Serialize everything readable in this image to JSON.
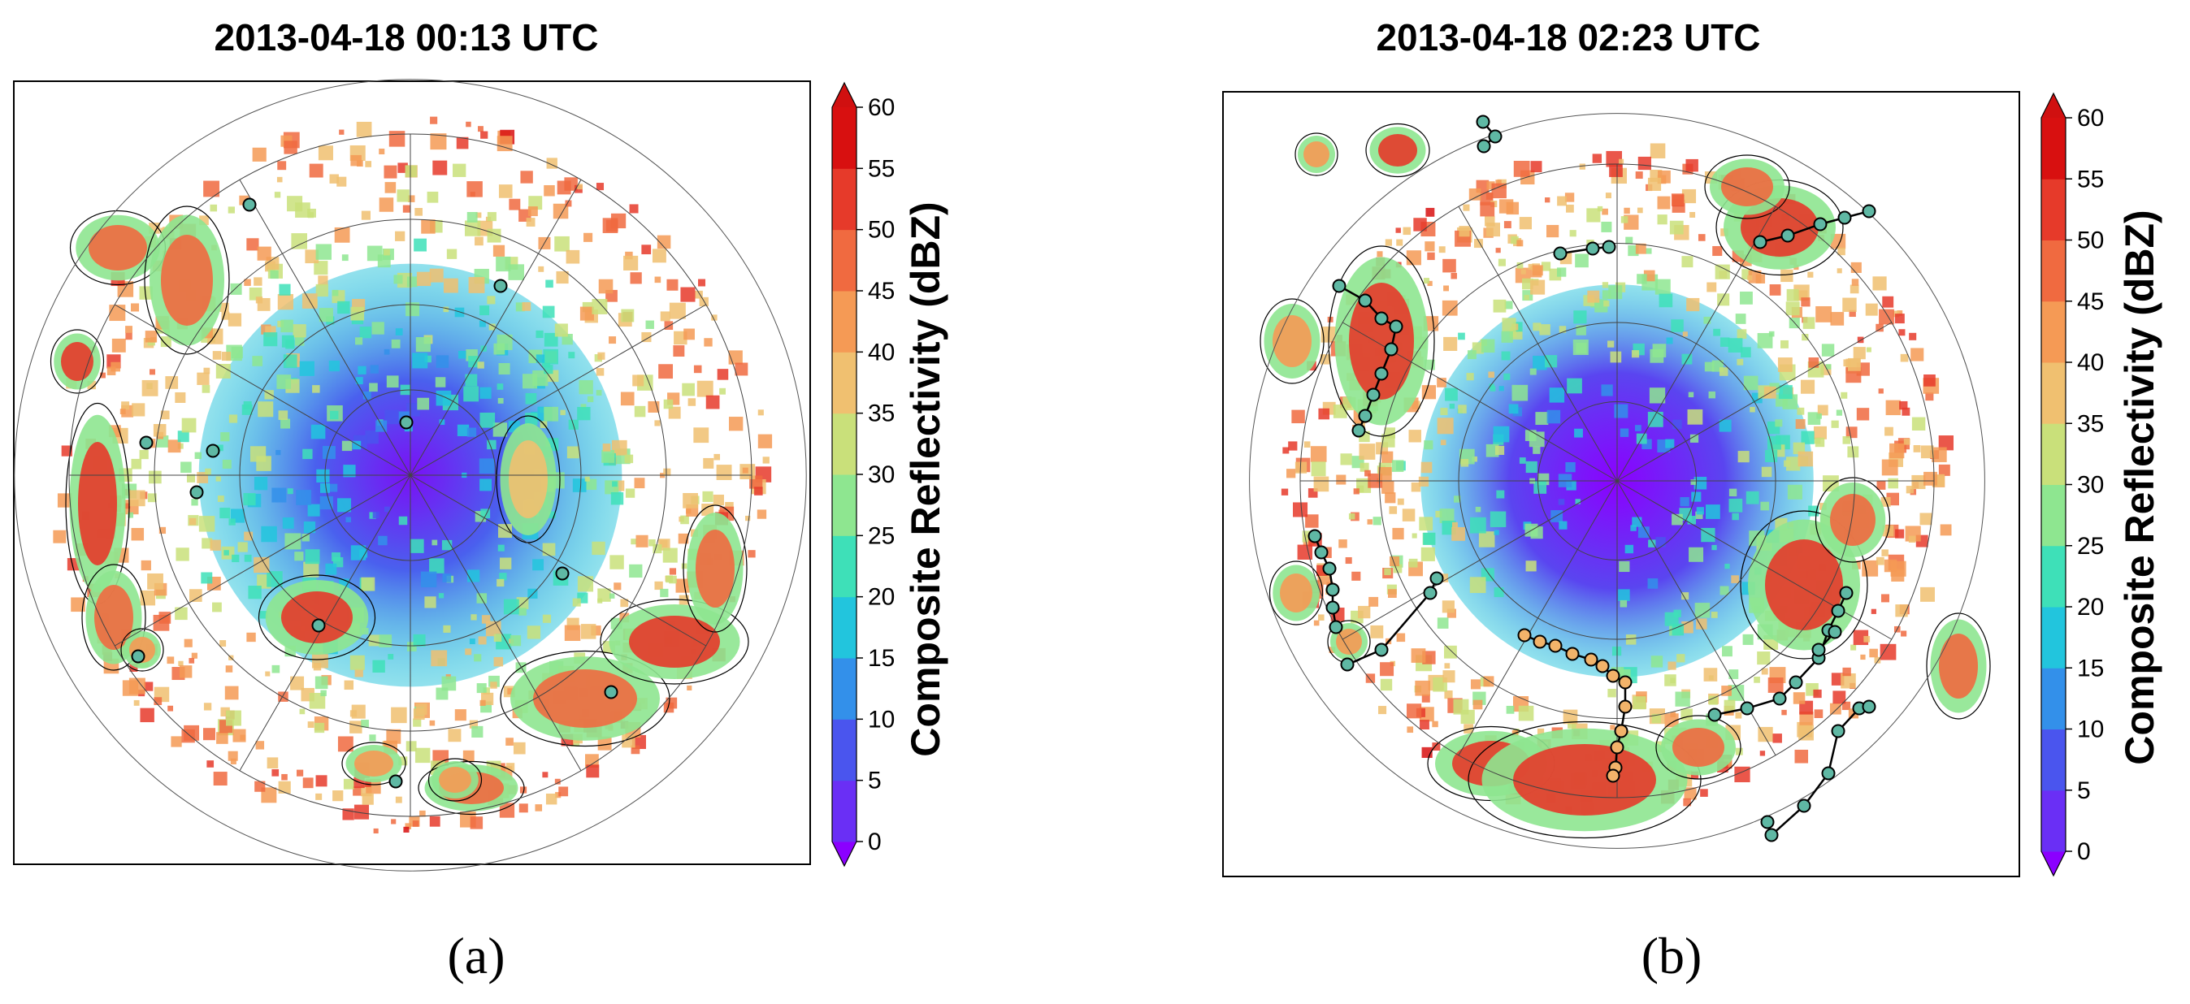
{
  "colors": {
    "levels": [
      "#8B00FF",
      "#6a2ff5",
      "#4a55ee",
      "#3390ea",
      "#22c5dd",
      "#3ee0b8",
      "#8ee690",
      "#c9e07a",
      "#f0c070",
      "#f59a55",
      "#f06a40",
      "#e63a2a",
      "#d81010"
    ],
    "under": "#8B00FF",
    "over": "#d01010",
    "contour": "#000000",
    "track_teal": "#5fb8a4",
    "track_orange": "#f2b36a"
  },
  "chart_data": [
    {
      "type": "heatmap",
      "panel": "(a)",
      "title": "2013-04-18 00:13 UTC",
      "colorbar_label": "Composite Reflectivity (dBZ)",
      "colorbar_ticks": [
        "0",
        "5",
        "10",
        "15",
        "20",
        "25",
        "30",
        "35",
        "40",
        "45",
        "50",
        "55",
        "60"
      ],
      "range": [
        0,
        60
      ],
      "extend": "both",
      "grid": true
    },
    {
      "type": "heatmap",
      "panel": "(b)",
      "title": "2013-04-18 02:23 UTC",
      "colorbar_label": "Composite Reflectivity (dBZ)",
      "colorbar_ticks": [
        "0",
        "5",
        "10",
        "15",
        "20",
        "25",
        "30",
        "35",
        "40",
        "45",
        "50",
        "55",
        "60"
      ],
      "range": [
        0,
        60
      ],
      "extend": "both",
      "grid": true
    }
  ]
}
